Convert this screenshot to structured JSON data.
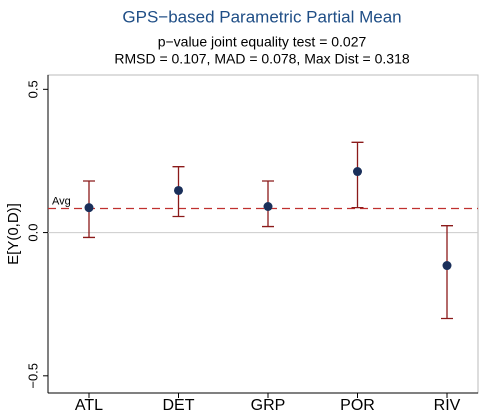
{
  "chart_data": {
    "type": "errorbar",
    "title": "GPS−based Parametric Partial Mean",
    "subtitle": [
      "p−value joint equality test = 0.027",
      "RMSD = 0.107, MAD = 0.078, Max Dist = 0.318"
    ],
    "y_label": "E[Y(0,D)]",
    "categories": [
      "ATL",
      "DET",
      "GRP",
      "POR",
      "RIV"
    ],
    "values": [
      0.087,
      0.147,
      0.091,
      0.213,
      -0.115
    ],
    "lower": [
      -0.017,
      0.056,
      0.021,
      0.087,
      -0.3
    ],
    "upper": [
      0.18,
      0.23,
      0.18,
      0.315,
      0.024
    ],
    "color": "#1a2f5a",
    "bar_color": "#8b1a1a",
    "reference_line": {
      "label": "Avg",
      "value": 0.084,
      "color": "#c0302f"
    },
    "hline": 0,
    "ylim": [
      -0.56,
      0.55
    ],
    "yticks": [
      {
        "value": -0.5,
        "label": "−0.5"
      },
      {
        "value": 0,
        "label": "0.0"
      },
      0.5
    ]
  }
}
